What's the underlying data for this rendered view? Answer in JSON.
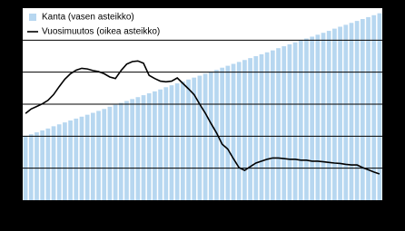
{
  "chart_data": {
    "type": "bar-line",
    "legend": "top-left",
    "grid": true,
    "ylim": [
      0,
      6
    ],
    "yticks": [
      1,
      2,
      3,
      4,
      5
    ],
    "y2lim": [
      0,
      6
    ],
    "series": [
      {
        "name": "Kanta (vasen asteikko)",
        "type": "bar",
        "color": "#b7d7f0",
        "values": [
          2.0,
          2.06,
          2.12,
          2.18,
          2.24,
          2.31,
          2.37,
          2.43,
          2.49,
          2.55,
          2.61,
          2.67,
          2.73,
          2.79,
          2.85,
          2.92,
          2.98,
          3.04,
          3.1,
          3.16,
          3.22,
          3.28,
          3.34,
          3.4,
          3.46,
          3.53,
          3.59,
          3.65,
          3.71,
          3.77,
          3.83,
          3.89,
          3.95,
          4.01,
          4.07,
          4.14,
          4.2,
          4.26,
          4.32,
          4.38,
          4.44,
          4.5,
          4.56,
          4.62,
          4.68,
          4.75,
          4.81,
          4.87,
          4.93,
          4.99,
          5.05,
          5.11,
          5.17,
          5.23,
          5.29,
          5.36,
          5.42,
          5.48,
          5.54,
          5.6,
          5.66,
          5.72,
          5.78,
          5.84
        ]
      },
      {
        "name": "Vuosimuutos (oikea asteikko)",
        "type": "line",
        "axis": "y2",
        "color": "#000000",
        "values": [
          2.71,
          2.85,
          2.93,
          3.01,
          3.12,
          3.3,
          3.55,
          3.78,
          3.95,
          4.06,
          4.12,
          4.1,
          4.05,
          4.02,
          3.95,
          3.85,
          3.8,
          4.05,
          4.25,
          4.33,
          4.35,
          4.28,
          3.9,
          3.8,
          3.72,
          3.7,
          3.72,
          3.82,
          3.65,
          3.48,
          3.3,
          3.0,
          2.72,
          2.4,
          2.1,
          1.75,
          1.6,
          1.3,
          1.02,
          0.93,
          1.05,
          1.16,
          1.22,
          1.28,
          1.32,
          1.32,
          1.3,
          1.28,
          1.28,
          1.25,
          1.25,
          1.22,
          1.22,
          1.2,
          1.18,
          1.16,
          1.15,
          1.12,
          1.1,
          1.1,
          1.02,
          0.95,
          0.88,
          0.82
        ]
      }
    ]
  }
}
